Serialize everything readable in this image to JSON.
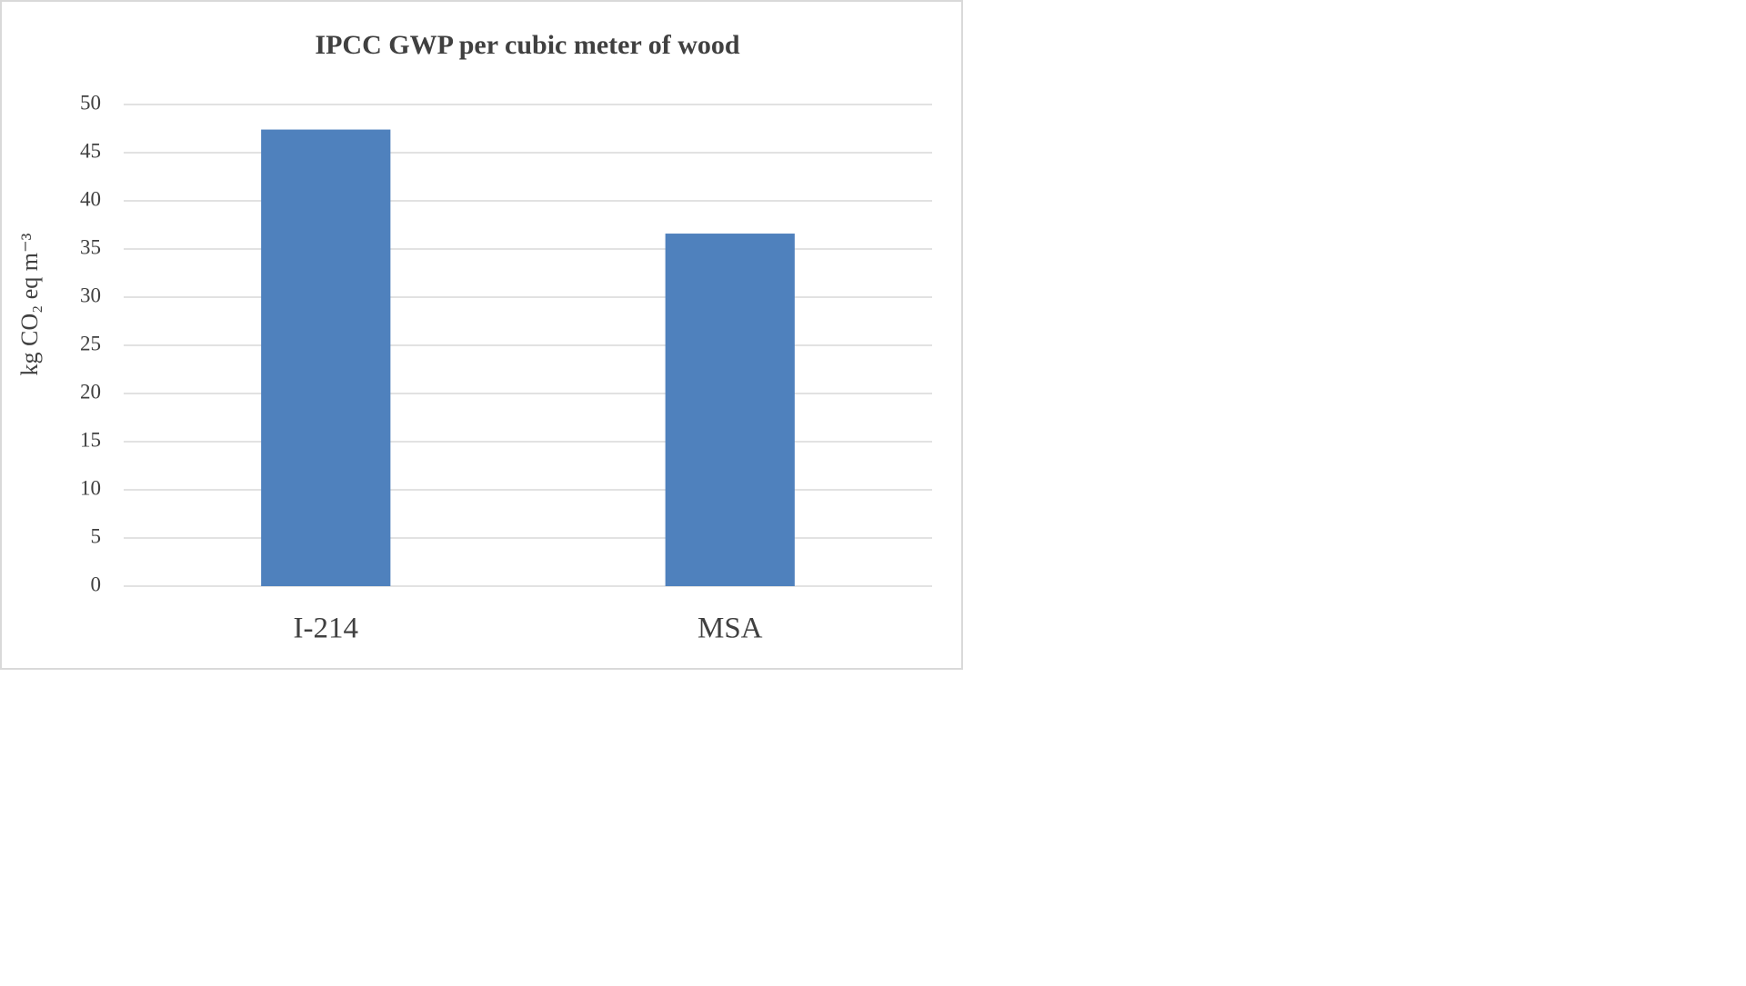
{
  "chart_data": {
    "type": "bar",
    "title": "IPCC  GWP per cubic  meter of wood",
    "y_label": "kg CO₂ eq  m⁻³",
    "categories": [
      "I-214",
      "MSA"
    ],
    "values": [
      47.4,
      36.6
    ],
    "color": "#4f81bd",
    "ylim": [
      0,
      50
    ],
    "yticks": [
      0,
      5,
      10,
      15,
      20,
      25,
      30,
      35,
      40,
      45,
      50
    ],
    "grid": true
  }
}
